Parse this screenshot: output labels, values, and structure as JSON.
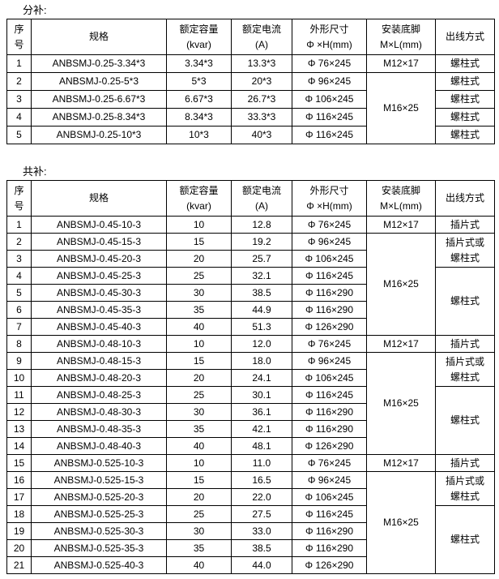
{
  "colors": {
    "background": "#ffffff",
    "text": "#000000",
    "border": "#000000"
  },
  "sections": [
    {
      "title": "分补:",
      "headers": [
        "序\n号",
        "规格",
        "额定容量\n(kvar)",
        "额定电流\n(A)",
        "外形尺寸\nΦ ×H(mm)",
        "安装底脚\nM×L(mm)",
        "出线方式"
      ],
      "rows": [
        [
          "1",
          "ANBSMJ-0.25-3.34*3",
          "3.34*3",
          "13.3*3",
          "Φ 76×245",
          "M12×17",
          "螺柱式"
        ],
        [
          "2",
          "ANBSMJ-0.25-5*3",
          "5*3",
          "20*3",
          "Φ 96×245",
          {
            "t": "M16×25",
            "rs": 4
          },
          "螺柱式"
        ],
        [
          "3",
          "ANBSMJ-0.25-6.67*3",
          "6.67*3",
          "26.7*3",
          "Φ 106×245",
          null,
          "螺柱式"
        ],
        [
          "4",
          "ANBSMJ-0.25-8.34*3",
          "8.34*3",
          "33.3*3",
          "Φ 116×245",
          null,
          "螺柱式"
        ],
        [
          "5",
          "ANBSMJ-0.25-10*3",
          "10*3",
          "40*3",
          "Φ 116×245",
          null,
          "螺柱式"
        ]
      ]
    },
    {
      "title": "共补:",
      "headers": [
        "序\n号",
        "规格",
        "额定容量\n(kvar)",
        "额定电流\n(A)",
        "外形尺寸\nΦ ×H(mm)",
        "安装底脚\nM×L(mm)",
        "出线方式"
      ],
      "rows": [
        [
          "1",
          "ANBSMJ-0.45-10-3",
          "10",
          "12.8",
          "Φ 76×245",
          "M12×17",
          "插片式"
        ],
        [
          "2",
          "ANBSMJ-0.45-15-3",
          "15",
          "19.2",
          "Φ 96×245",
          {
            "t": "M16×25",
            "rs": 6
          },
          {
            "t": "插片式或\n螺柱式",
            "rs": 2
          }
        ],
        [
          "3",
          "ANBSMJ-0.45-20-3",
          "20",
          "25.7",
          "Φ 106×245",
          null,
          null
        ],
        [
          "4",
          "ANBSMJ-0.45-25-3",
          "25",
          "32.1",
          "Φ 116×245",
          null,
          {
            "t": "螺柱式",
            "rs": 4
          }
        ],
        [
          "5",
          "ANBSMJ-0.45-30-3",
          "30",
          "38.5",
          "Φ 116×290",
          null,
          null
        ],
        [
          "6",
          "ANBSMJ-0.45-35-3",
          "35",
          "44.9",
          "Φ 116×290",
          null,
          null
        ],
        [
          "7",
          "ANBSMJ-0.45-40-3",
          "40",
          "51.3",
          "Φ 126×290",
          null,
          null
        ],
        [
          "8",
          "ANBSMJ-0.48-10-3",
          "10",
          "12.0",
          "Φ 76×245",
          "M12×17",
          "插片式"
        ],
        [
          "9",
          "ANBSMJ-0.48-15-3",
          "15",
          "18.0",
          "Φ 96×245",
          {
            "t": "M16×25",
            "rs": 6
          },
          {
            "t": "插片式或\n螺柱式",
            "rs": 2
          }
        ],
        [
          "10",
          "ANBSMJ-0.48-20-3",
          "20",
          "24.1",
          "Φ 106×245",
          null,
          null
        ],
        [
          "11",
          "ANBSMJ-0.48-25-3",
          "25",
          "30.1",
          "Φ 116×245",
          null,
          {
            "t": "螺柱式",
            "rs": 4
          }
        ],
        [
          "12",
          "ANBSMJ-0.48-30-3",
          "30",
          "36.1",
          "Φ 116×290",
          null,
          null
        ],
        [
          "13",
          "ANBSMJ-0.48-35-3",
          "35",
          "42.1",
          "Φ 116×290",
          null,
          null
        ],
        [
          "14",
          "ANBSMJ-0.48-40-3",
          "40",
          "48.1",
          "Φ 126×290",
          null,
          null
        ],
        [
          "15",
          "ANBSMJ-0.525-10-3",
          "10",
          "11.0",
          "Φ 76×245",
          "M12×17",
          "插片式"
        ],
        [
          "16",
          "ANBSMJ-0.525-15-3",
          "15",
          "16.5",
          "Φ 96×245",
          {
            "t": "M16×25",
            "rs": 6
          },
          {
            "t": "插片式或\n螺柱式",
            "rs": 2
          }
        ],
        [
          "17",
          "ANBSMJ-0.525-20-3",
          "20",
          "22.0",
          "Φ 106×245",
          null,
          null
        ],
        [
          "18",
          "ANBSMJ-0.525-25-3",
          "25",
          "27.5",
          "Φ 116×245",
          null,
          {
            "t": "螺柱式",
            "rs": 4
          }
        ],
        [
          "19",
          "ANBSMJ-0.525-30-3",
          "30",
          "33.0",
          "Φ 116×290",
          null,
          null
        ],
        [
          "20",
          "ANBSMJ-0.525-35-3",
          "35",
          "38.5",
          "Φ 116×290",
          null,
          null
        ],
        [
          "21",
          "ANBSMJ-0.525-40-3",
          "40",
          "44.0",
          "Φ 126×290",
          null,
          null
        ]
      ]
    }
  ]
}
